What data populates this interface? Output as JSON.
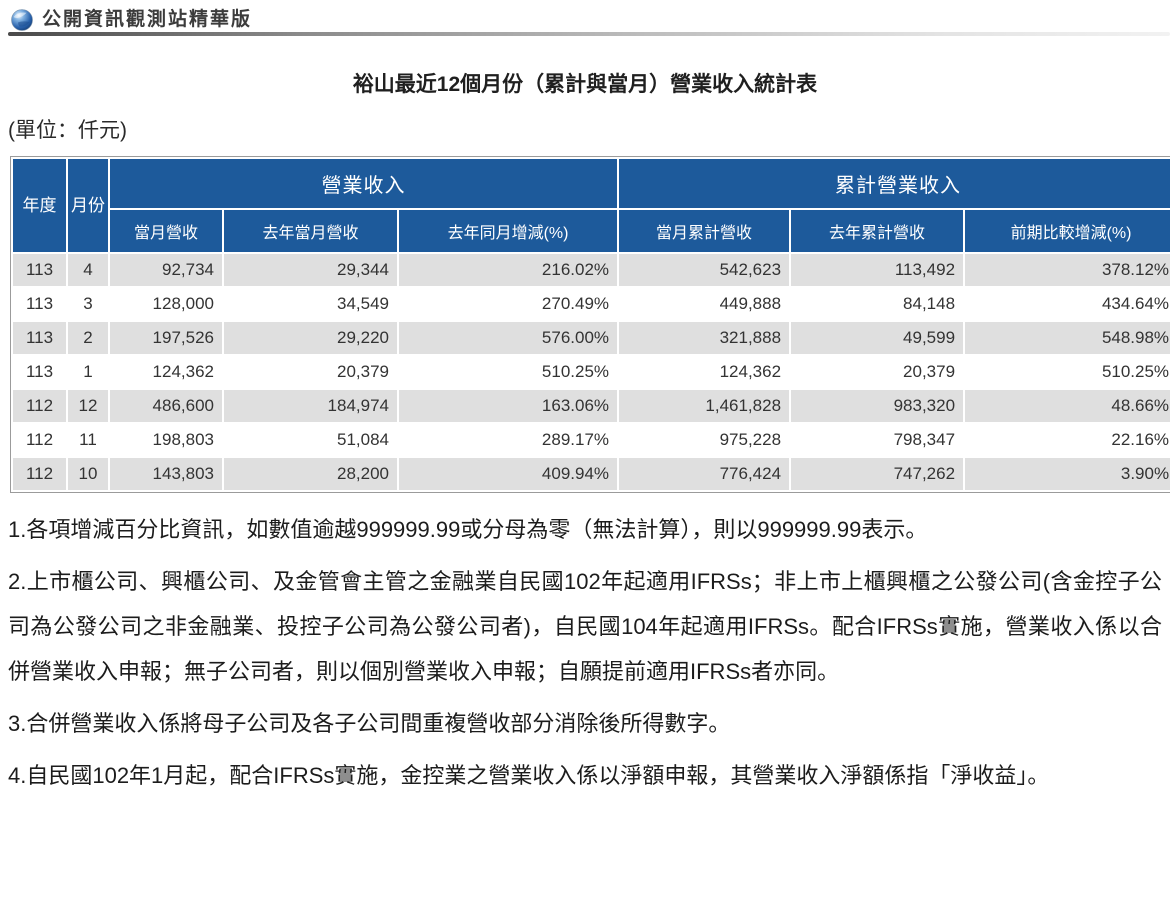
{
  "header": {
    "site_title": "公開資訊觀測站精華版"
  },
  "page": {
    "title": "裕山最近12個月份（累計與當月）營業收入統計表",
    "unit_label": "(單位：仟元)"
  },
  "table": {
    "headers": {
      "year": "年度",
      "month": "月份",
      "group_monthly": "營業收入",
      "group_cumulative": "累計營業收入",
      "col_current_month": "當月營收",
      "col_last_year_month": "去年當月營收",
      "col_yoy_change": "去年同月增減(%)",
      "col_current_cum": "當月累計營收",
      "col_last_year_cum": "去年累計營收",
      "col_period_change": "前期比較增減(%)"
    },
    "rows": [
      {
        "year": "113",
        "month": "4",
        "current": "92,734",
        "last_year": "29,344",
        "yoy": "216.02%",
        "cum": "542,623",
        "last_cum": "113,492",
        "period": "378.12%"
      },
      {
        "year": "113",
        "month": "3",
        "current": "128,000",
        "last_year": "34,549",
        "yoy": "270.49%",
        "cum": "449,888",
        "last_cum": "84,148",
        "period": "434.64%"
      },
      {
        "year": "113",
        "month": "2",
        "current": "197,526",
        "last_year": "29,220",
        "yoy": "576.00%",
        "cum": "321,888",
        "last_cum": "49,599",
        "period": "548.98%"
      },
      {
        "year": "113",
        "month": "1",
        "current": "124,362",
        "last_year": "20,379",
        "yoy": "510.25%",
        "cum": "124,362",
        "last_cum": "20,379",
        "period": "510.25%"
      },
      {
        "year": "112",
        "month": "12",
        "current": "486,600",
        "last_year": "184,974",
        "yoy": "163.06%",
        "cum": "1,461,828",
        "last_cum": "983,320",
        "period": "48.66%"
      },
      {
        "year": "112",
        "month": "11",
        "current": "198,803",
        "last_year": "51,084",
        "yoy": "289.17%",
        "cum": "975,228",
        "last_cum": "798,347",
        "period": "22.16%"
      },
      {
        "year": "112",
        "month": "10",
        "current": "143,803",
        "last_year": "28,200",
        "yoy": "409.94%",
        "cum": "776,424",
        "last_cum": "747,262",
        "period": "3.90%"
      }
    ]
  },
  "footnotes": [
    "1.各項增減百分比資訊，如數值逾越999999.99或分母為零（無法計算），則以999999.99表示。",
    "2.上市櫃公司、興櫃公司、及金管會主管之金融業自民國102年起適用IFRSs；非上市上櫃興櫃之公發公司(含金控子公司為公發公司之非金融業、投控子公司為公發公司者)，自民國104年起適用IFRSs。配合IFRSs實施，營業收入係以合併營業收入申報；無子公司者，則以個別營業收入申報；自願提前適用IFRSs者亦同。",
    "3.合併營業收入係將母子公司及各子公司間重複營收部分消除後所得數字。",
    "4.自民國102年1月起，配合IFRSs實施，金控業之營業收入係以淨額申報，其營業收入淨額係指「淨收益」。"
  ],
  "colors": {
    "header_blue": "#1d5a9b",
    "row_alt": "#dfdfdf",
    "row_white": "#ffffff"
  }
}
